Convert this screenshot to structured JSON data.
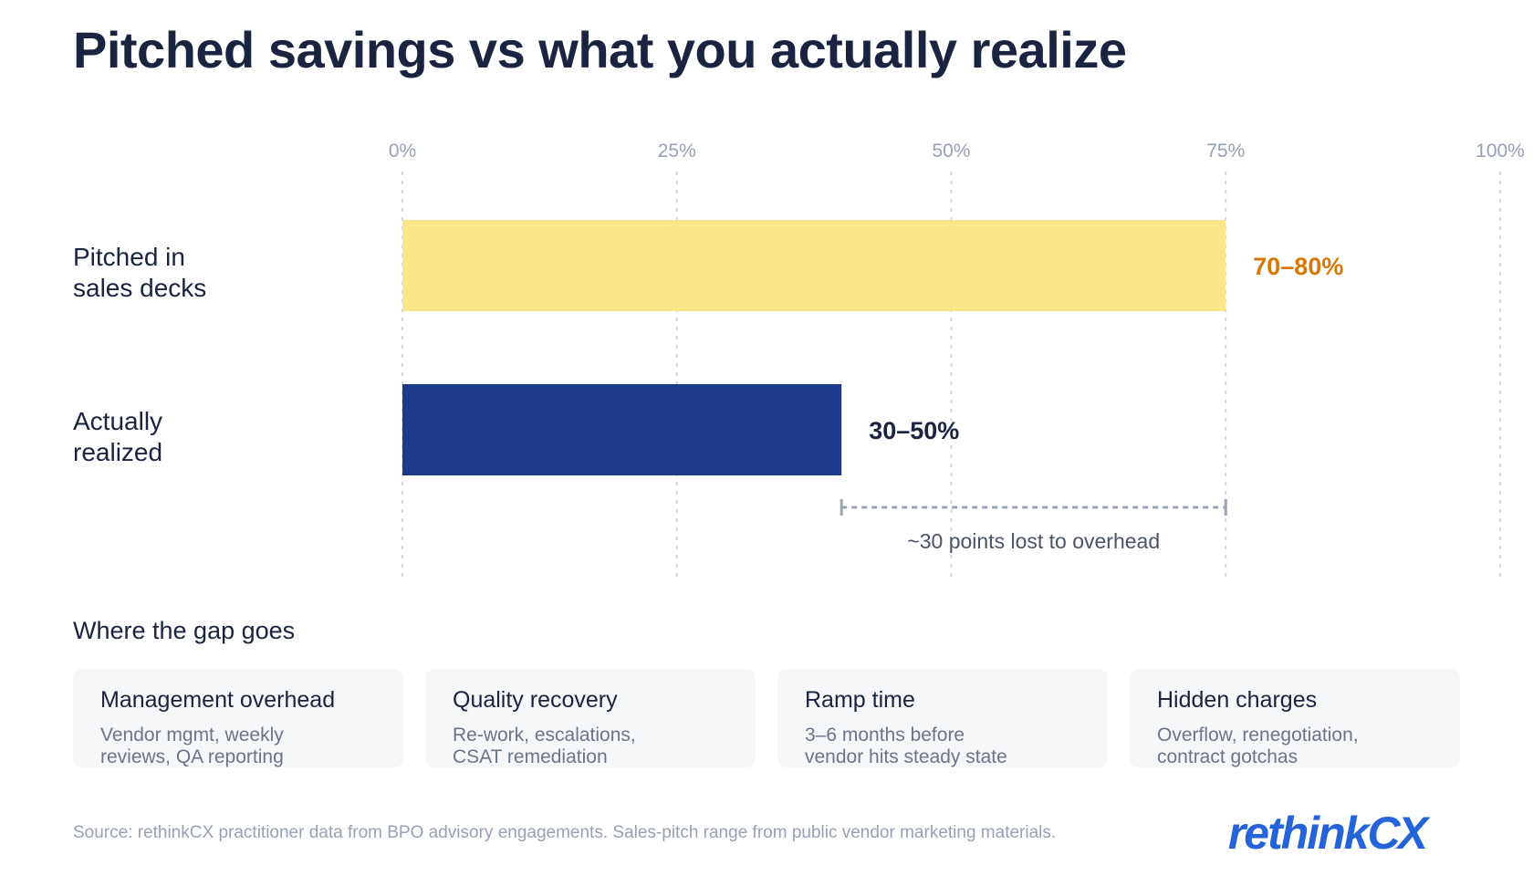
{
  "title": "Pitched savings vs what you actually realize",
  "colors": {
    "pitched_bar": "#fde68a",
    "pitched_label": "#d97706",
    "realized_bar": "#1e3a8a",
    "realized_label": "#1a2340",
    "grid": "#d4d8e0",
    "tick": "#98a1b3",
    "bracket": "#9aa3b5"
  },
  "chart_data": {
    "type": "bar",
    "orientation": "horizontal",
    "categories": [
      "Pitched in sales decks",
      "Actually realized"
    ],
    "category_labels": [
      [
        "Pitched in",
        "sales decks"
      ],
      [
        "Actually",
        "realized"
      ]
    ],
    "ranges": [
      [
        70,
        80
      ],
      [
        30,
        50
      ]
    ],
    "values": [
      75,
      40
    ],
    "value_labels": [
      "70–80%",
      "30–50%"
    ],
    "xlim": [
      0,
      100
    ],
    "ticks": [
      0,
      25,
      50,
      75,
      100
    ],
    "tick_labels": [
      "0%",
      "25%",
      "50%",
      "75%",
      "100%"
    ],
    "grid": true,
    "annotation": {
      "from": 40,
      "to": 75,
      "text": "~30 points lost to overhead"
    }
  },
  "gap_section": {
    "heading": "Where the gap goes",
    "cards": [
      {
        "title": "Management overhead",
        "desc": "Vendor mgmt, weekly reviews, QA reporting"
      },
      {
        "title": "Quality recovery",
        "desc": "Re-work, escalations, CSAT remediation"
      },
      {
        "title": "Ramp time",
        "desc": "3–6 months before vendor hits steady state"
      },
      {
        "title": "Hidden charges",
        "desc": "Overflow, renegotiation, contract gotchas"
      }
    ]
  },
  "source": "Source: rethinkCX practitioner data from BPO advisory engagements. Sales-pitch range from public vendor marketing materials.",
  "logo": {
    "part1": "rethink",
    "part2": "CX"
  }
}
